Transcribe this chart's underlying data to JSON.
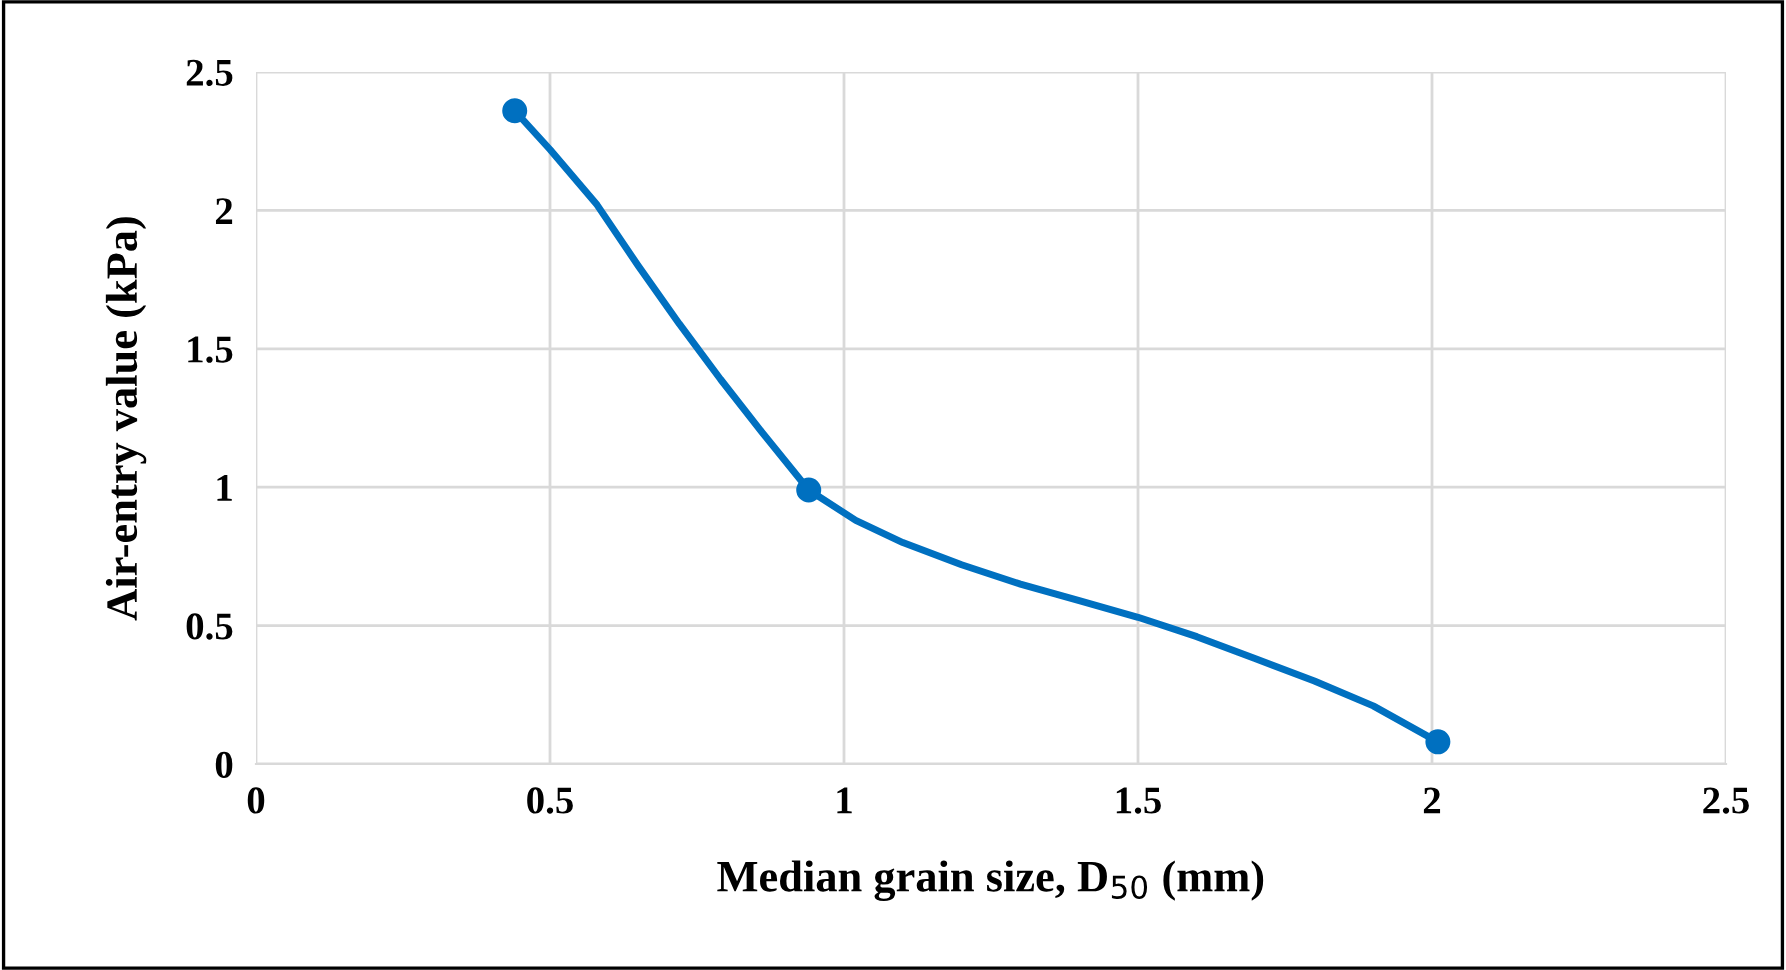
{
  "chart_data": {
    "type": "line",
    "xlabel": "Median grain size, D$_{50}$ (mm)",
    "ylabel": "Air-entry value (kPa)",
    "x": [
      0.44,
      0.94,
      2.01
    ],
    "series": [
      {
        "marker": "none",
        "color": "#0070c0",
        "x": [
          0.44,
          0.5,
          0.58,
          0.65,
          0.72,
          0.79,
          0.86,
          0.94,
          1.02,
          1.1,
          1.2,
          1.3,
          1.4,
          1.5,
          1.6,
          1.7,
          1.8,
          1.9,
          2.01
        ],
        "values": [
          2.36,
          2.22,
          2.02,
          1.8,
          1.59,
          1.39,
          1.2,
          0.99,
          0.88,
          0.8,
          0.72,
          0.65,
          0.59,
          0.53,
          0.46,
          0.38,
          0.3,
          0.21,
          0.08
        ]
      },
      {
        "type": "scatter",
        "color": "#0070c0",
        "values": [
          2.36,
          0.99,
          0.08
        ]
      }
    ],
    "xlim": [
      0,
      2.5
    ],
    "xticks": [
      0,
      0.5,
      1,
      1.5,
      2,
      2.5
    ],
    "ylim": [
      0,
      2.5
    ],
    "yticks": [
      0,
      0.5,
      1,
      1.5,
      2,
      2.5
    ],
    "grid": true,
    "marker": "circle",
    "line_style": "solid"
  }
}
